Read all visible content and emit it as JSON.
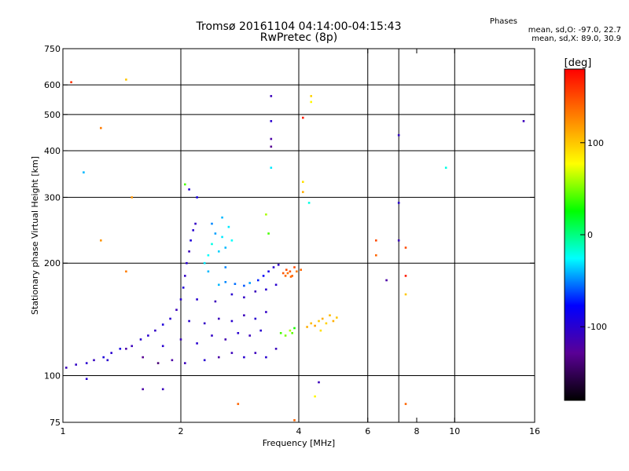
{
  "chart_data": {
    "type": "scatter",
    "title": "Tromsø 20161104 04:14:00-04:15:43",
    "subtitle": "RwPretec (8p)",
    "xlabel": "Frequency [MHz]",
    "ylabel": "Stationary phase Virtual Height [km]",
    "xscale": "log",
    "yscale": "log",
    "xlim": [
      1,
      16
    ],
    "ylim": [
      75,
      750
    ],
    "grid": true,
    "x_ticks": [
      1,
      2,
      4,
      6,
      8,
      10,
      16
    ],
    "x_gridlines": [
      2,
      4,
      6,
      7.2,
      10
    ],
    "y_ticks": [
      75,
      100,
      200,
      300,
      400,
      500,
      600,
      750
    ],
    "y_gridlines": [
      100,
      200,
      300,
      400,
      500,
      600
    ],
    "colorbar": {
      "label": "[deg]",
      "ticks": [
        100,
        0,
        -100
      ],
      "range": [
        -180,
        180
      ],
      "colors": [
        "#ff0000",
        "#ff8000",
        "#ffff00",
        "#00ff00",
        "#00ffff",
        "#0000ff",
        "#5a0096",
        "#000000"
      ]
    },
    "stats": {
      "title": "Phases",
      "o_line": "mean, sd,O: -97.0, 22.7",
      "x_line": "mean, sd,X:  89.0, 30.9"
    },
    "series": [
      {
        "points": [
          [
            1.02,
            105,
            -110
          ],
          [
            1.08,
            107,
            -105
          ],
          [
            1.15,
            108,
            -100
          ],
          [
            1.2,
            110,
            -108
          ],
          [
            1.27,
            112,
            -95
          ],
          [
            1.33,
            115,
            -100
          ],
          [
            1.4,
            118,
            -90
          ],
          [
            1.5,
            120,
            -110
          ],
          [
            1.58,
            125,
            -100
          ],
          [
            1.65,
            128,
            -100
          ],
          [
            1.72,
            132,
            -105
          ],
          [
            1.8,
            137,
            -95
          ],
          [
            1.88,
            142,
            -100
          ],
          [
            1.95,
            150,
            -110
          ],
          [
            2.0,
            160,
            -100
          ],
          [
            2.03,
            172,
            -95
          ],
          [
            2.05,
            185,
            -105
          ],
          [
            2.07,
            200,
            -100
          ],
          [
            2.1,
            215,
            -110
          ],
          [
            2.12,
            230,
            -95
          ],
          [
            2.15,
            245,
            -100
          ],
          [
            2.18,
            255,
            -105
          ],
          [
            1.3,
            110,
            -100
          ],
          [
            1.45,
            118,
            -120
          ],
          [
            1.6,
            112,
            -130
          ],
          [
            1.75,
            108,
            -140
          ],
          [
            1.9,
            110,
            -120
          ],
          [
            2.05,
            108,
            -110
          ],
          [
            2.3,
            110,
            -100
          ],
          [
            2.5,
            112,
            -120
          ],
          [
            2.7,
            115,
            -110
          ],
          [
            2.9,
            112,
            -100
          ],
          [
            3.1,
            115,
            -110
          ],
          [
            3.3,
            112,
            -100
          ],
          [
            3.5,
            118,
            -110
          ],
          [
            1.8,
            120,
            -100
          ],
          [
            2.0,
            125,
            -110
          ],
          [
            2.2,
            122,
            -100
          ],
          [
            2.4,
            128,
            -105
          ],
          [
            2.6,
            125,
            -115
          ],
          [
            2.8,
            130,
            -100
          ],
          [
            3.0,
            128,
            -110
          ],
          [
            3.2,
            132,
            -100
          ],
          [
            2.1,
            140,
            -100
          ],
          [
            2.3,
            138,
            -105
          ],
          [
            2.5,
            142,
            -110
          ],
          [
            2.7,
            140,
            -100
          ],
          [
            2.9,
            145,
            -110
          ],
          [
            3.1,
            142,
            -100
          ],
          [
            3.3,
            148,
            -105
          ],
          [
            2.2,
            160,
            -100
          ],
          [
            2.45,
            158,
            -110
          ],
          [
            2.7,
            165,
            -100
          ],
          [
            2.9,
            162,
            -105
          ],
          [
            3.1,
            168,
            -110
          ],
          [
            3.3,
            170,
            -100
          ],
          [
            3.5,
            175,
            -100
          ],
          [
            2.5,
            175,
            -40
          ],
          [
            2.6,
            178,
            -50
          ],
          [
            2.75,
            176,
            -55
          ],
          [
            2.9,
            174,
            -60
          ],
          [
            3.0,
            177,
            -45
          ],
          [
            3.15,
            180,
            -70
          ],
          [
            3.25,
            185,
            -80
          ],
          [
            3.35,
            190,
            -90
          ],
          [
            3.45,
            195,
            -100
          ],
          [
            3.55,
            198,
            -105
          ],
          [
            2.3,
            200,
            -30
          ],
          [
            2.35,
            210,
            -25
          ],
          [
            2.4,
            225,
            -20
          ],
          [
            2.5,
            215,
            -35
          ],
          [
            2.55,
            235,
            -30
          ],
          [
            2.6,
            220,
            -40
          ],
          [
            2.45,
            240,
            -45
          ],
          [
            2.4,
            255,
            -50
          ],
          [
            2.55,
            265,
            -40
          ],
          [
            2.65,
            250,
            -30
          ],
          [
            2.7,
            230,
            -25
          ],
          [
            2.35,
            190,
            -40
          ],
          [
            2.6,
            195,
            -50
          ],
          [
            3.7,
            185,
            140
          ],
          [
            3.75,
            188,
            135
          ],
          [
            3.8,
            190,
            145
          ],
          [
            3.85,
            185,
            140
          ],
          [
            3.9,
            195,
            150
          ],
          [
            3.95,
            190,
            130
          ],
          [
            4.05,
            192,
            140
          ],
          [
            3.65,
            188,
            145
          ],
          [
            3.72,
            192,
            150
          ],
          [
            3.82,
            184,
            138
          ],
          [
            4.2,
            135,
            110
          ],
          [
            4.3,
            138,
            105
          ],
          [
            4.4,
            136,
            115
          ],
          [
            4.5,
            140,
            100
          ],
          [
            4.6,
            142,
            110
          ],
          [
            4.7,
            138,
            95
          ],
          [
            4.8,
            145,
            105
          ],
          [
            4.9,
            140,
            110
          ],
          [
            5.0,
            143,
            100
          ],
          [
            4.55,
            132,
            90
          ],
          [
            3.6,
            130,
            40
          ],
          [
            3.7,
            128,
            50
          ],
          [
            3.8,
            132,
            60
          ],
          [
            3.85,
            130,
            45
          ],
          [
            3.9,
            134,
            30
          ],
          [
            3.4,
            560,
            -110
          ],
          [
            3.4,
            480,
            -100
          ],
          [
            3.4,
            430,
            -120
          ],
          [
            3.4,
            410,
            -130
          ],
          [
            3.4,
            360,
            -30
          ],
          [
            3.3,
            270,
            60
          ],
          [
            3.35,
            240,
            40
          ],
          [
            4.1,
            490,
            170
          ],
          [
            4.3,
            560,
            95
          ],
          [
            4.3,
            540,
            80
          ],
          [
            4.1,
            330,
            90
          ],
          [
            4.1,
            310,
            110
          ],
          [
            4.25,
            290,
            -20
          ],
          [
            7.2,
            440,
            -105
          ],
          [
            7.2,
            290,
            -100
          ],
          [
            7.2,
            230,
            -110
          ],
          [
            7.5,
            185,
            170
          ],
          [
            7.5,
            165,
            100
          ],
          [
            7.5,
            220,
            150
          ],
          [
            6.3,
            230,
            150
          ],
          [
            6.3,
            210,
            140
          ],
          [
            6.7,
            180,
            -120
          ],
          [
            9.5,
            360,
            -20
          ],
          [
            15,
            480,
            -110
          ],
          [
            1.13,
            350,
            -40
          ],
          [
            1.05,
            610,
            160
          ],
          [
            1.25,
            460,
            130
          ],
          [
            1.45,
            620,
            100
          ],
          [
            1.5,
            300,
            120
          ],
          [
            1.25,
            230,
            120
          ],
          [
            1.45,
            190,
            130
          ],
          [
            1.6,
            92,
            -120
          ],
          [
            1.8,
            92,
            -110
          ],
          [
            2.8,
            84,
            140
          ],
          [
            3.9,
            76,
            140
          ],
          [
            4.4,
            88,
            80
          ],
          [
            7.5,
            84,
            140
          ],
          [
            4.5,
            96,
            -110
          ],
          [
            1.15,
            98,
            -100
          ],
          [
            2.1,
            315,
            -100
          ],
          [
            2.05,
            325,
            40
          ],
          [
            2.2,
            300,
            -90
          ]
        ]
      }
    ]
  }
}
